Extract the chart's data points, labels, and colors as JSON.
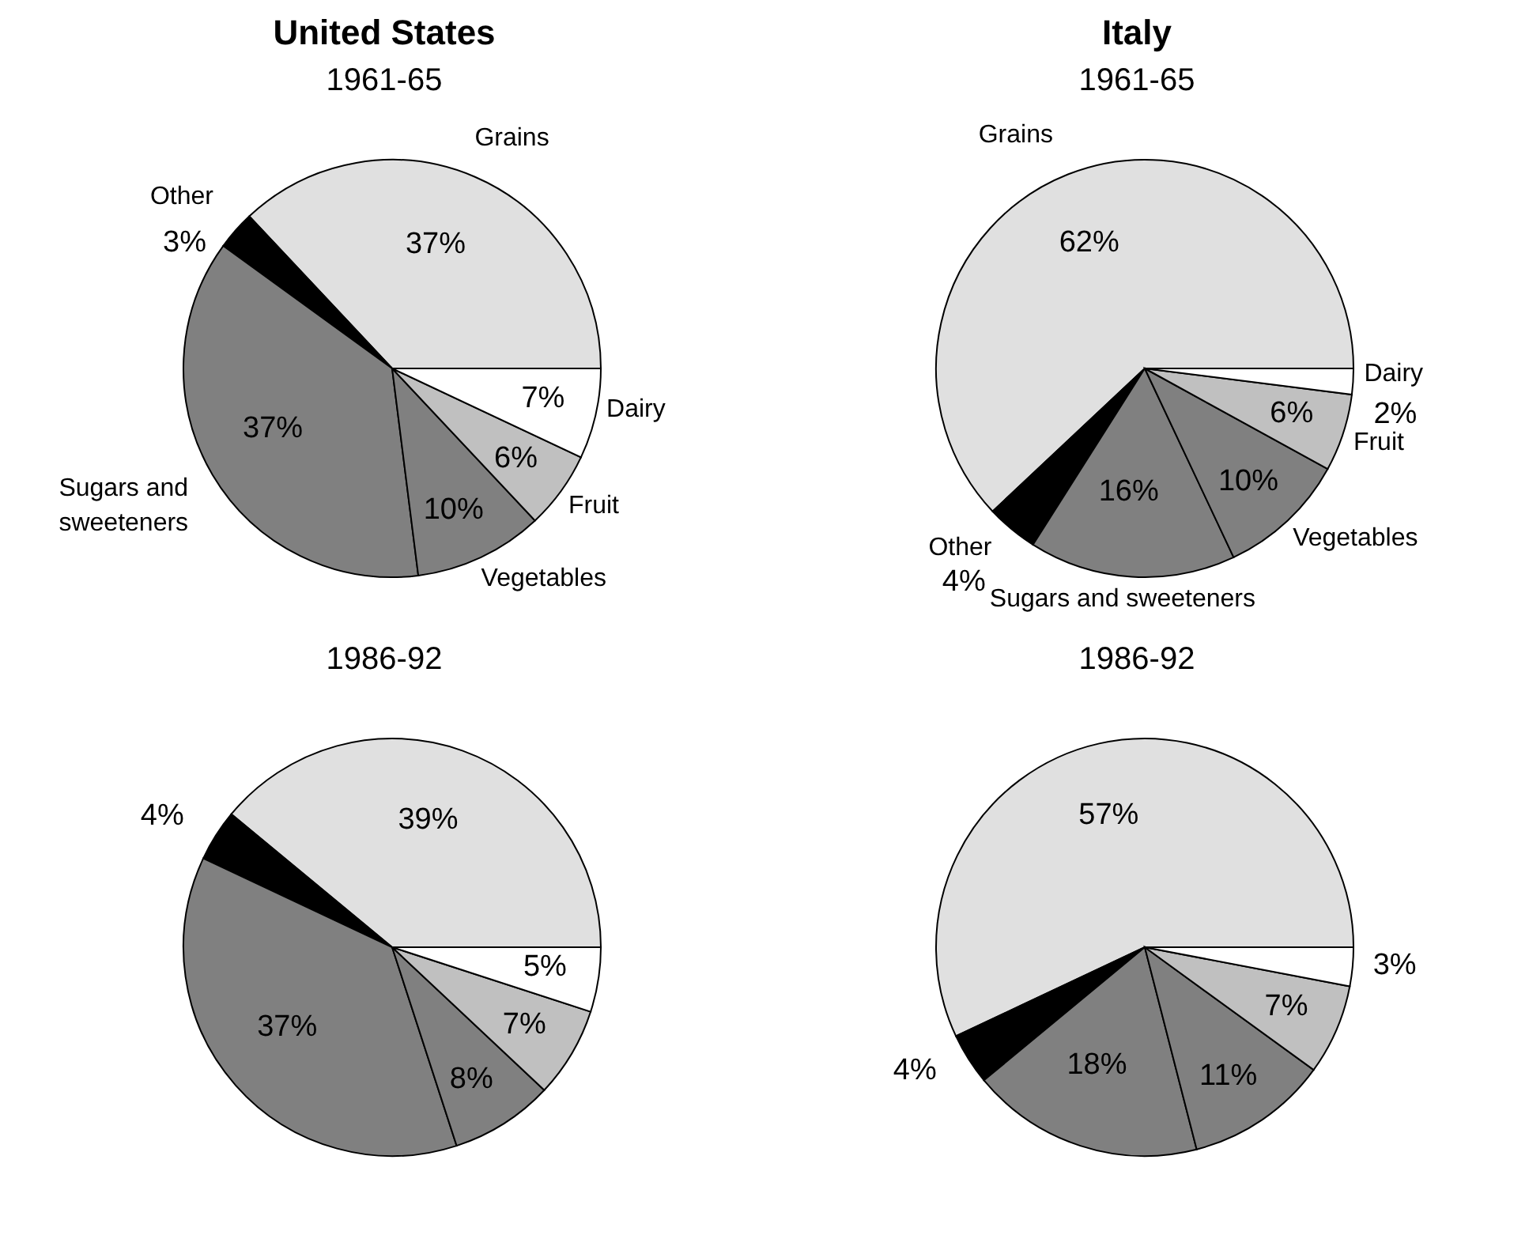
{
  "chart_data": [
    {
      "type": "pie",
      "title": "United States",
      "subtitle": "1961-65",
      "categories": [
        "Grains",
        "Other",
        "Sugars and sweeteners",
        "Vegetables",
        "Fruit",
        "Dairy"
      ],
      "values": [
        37,
        3,
        37,
        10,
        6,
        7
      ],
      "value_labels": [
        "37%",
        "3%",
        "37%",
        "10%",
        "6%",
        "7%"
      ],
      "colors": [
        "#e0e0e0",
        "#000000",
        "#808080",
        "#808080",
        "#c0c0c0",
        "#ffffff"
      ],
      "legend": false
    },
    {
      "type": "pie",
      "title": "Italy",
      "subtitle": "1961-65",
      "categories": [
        "Grains",
        "Other",
        "Sugars and sweeteners",
        "Vegetables",
        "Fruit",
        "Dairy"
      ],
      "values": [
        62,
        4,
        16,
        10,
        6,
        2
      ],
      "value_labels": [
        "62%",
        "4%",
        "16%",
        "10%",
        "6%",
        "2%"
      ],
      "colors": [
        "#e0e0e0",
        "#000000",
        "#808080",
        "#808080",
        "#c0c0c0",
        "#ffffff"
      ],
      "legend": false
    },
    {
      "type": "pie",
      "subtitle": "1986-92",
      "categories": [
        null,
        null,
        null,
        null,
        null,
        null
      ],
      "values": [
        39,
        4,
        37,
        8,
        7,
        5
      ],
      "value_labels": [
        "39%",
        "4%",
        "37%",
        "8%",
        "7%",
        "5%"
      ],
      "colors": [
        "#e0e0e0",
        "#000000",
        "#808080",
        "#808080",
        "#c0c0c0",
        "#ffffff"
      ],
      "legend": false
    },
    {
      "type": "pie",
      "subtitle": "1986-92",
      "categories": [
        null,
        null,
        null,
        null,
        null,
        null
      ],
      "values": [
        57,
        4,
        18,
        11,
        7,
        3
      ],
      "value_labels": [
        "57%",
        "4%",
        "18%",
        "11%",
        "7%",
        "3%"
      ],
      "colors": [
        "#e0e0e0",
        "#000000",
        "#808080",
        "#808080",
        "#c0c0c0",
        "#ffffff"
      ],
      "legend": false
    }
  ]
}
